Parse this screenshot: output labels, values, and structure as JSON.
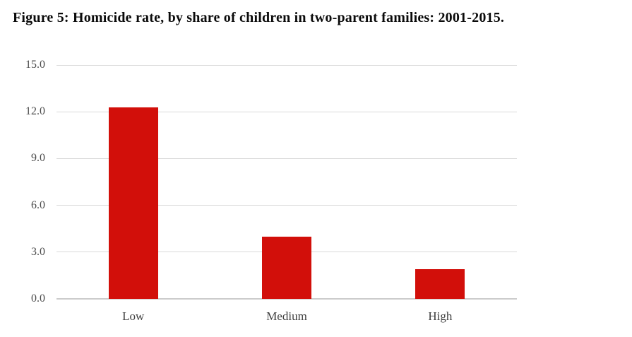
{
  "page": {
    "background_color": "#ffffff"
  },
  "chart_data": {
    "type": "bar",
    "title": "Figure 5: Homicide rate, by share of children in two-parent families: 2001-2015.",
    "categories": [
      "Low",
      "Medium",
      "High"
    ],
    "values": [
      12.3,
      4.0,
      1.9
    ],
    "xlabel": "",
    "ylabel": "",
    "ylim": [
      0,
      15
    ],
    "yticks": [
      0.0,
      3.0,
      6.0,
      9.0,
      12.0,
      15.0
    ],
    "ytick_labels": [
      "0.0",
      "3.0",
      "6.0",
      "9.0",
      "12.0",
      "15.0"
    ],
    "grid": true,
    "legend": false,
    "bar_color": "#d20f0a",
    "gridline_color": "#d9d9d9",
    "baseline_color": "#cccccc",
    "tick_label_color": "#4a4a4a"
  }
}
